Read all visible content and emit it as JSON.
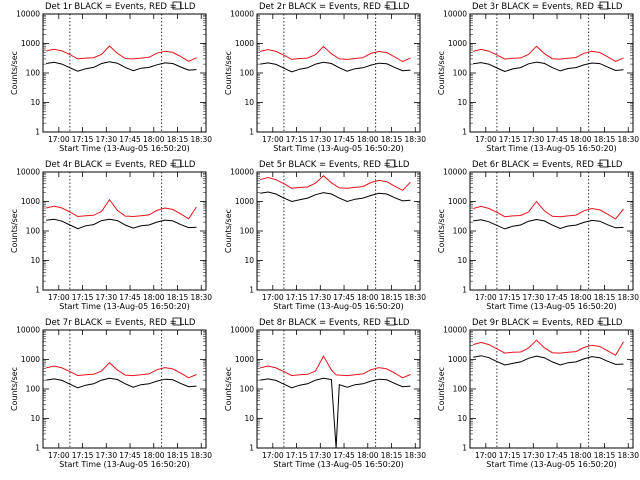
{
  "colors": {
    "events": "#000000",
    "lld": "#e8141c",
    "frame": "#000000",
    "background": "#ffffff"
  },
  "y_tick_labels": [
    "1",
    "10",
    "100",
    "1000",
    "10000"
  ],
  "x_tick_labels": [
    "17:00",
    "17:15",
    "17:30",
    "17:45",
    "18:00",
    "18:15",
    "18:30"
  ],
  "chart_data": [
    {
      "type": "line",
      "title": "Det 1r BLACK = Events, RED = LLD",
      "xlabel": "Start Time (13-Aug-05 16:50:20)",
      "ylabel": "Counts/sec",
      "yscale": "log",
      "ylim": [
        1,
        10000
      ],
      "x": [
        "16:52",
        "16:57",
        "17:02",
        "17:07",
        "17:12",
        "17:17",
        "17:22",
        "17:27",
        "17:32",
        "17:37",
        "17:42",
        "17:47",
        "17:52",
        "17:57",
        "18:02",
        "18:07",
        "18:12",
        "18:17",
        "18:22",
        "18:27"
      ],
      "series": [
        {
          "name": "Events",
          "values": [
            210,
            230,
            200,
            150,
            115,
            140,
            155,
            210,
            240,
            215,
            155,
            120,
            145,
            155,
            190,
            220,
            210,
            160,
            125,
            130
          ]
        },
        {
          "name": "LLD",
          "values": [
            560,
            640,
            560,
            420,
            300,
            320,
            330,
            430,
            820,
            460,
            310,
            300,
            320,
            340,
            470,
            550,
            500,
            360,
            250,
            330
          ]
        }
      ],
      "dashed_x": [
        "17:07",
        "18:05"
      ]
    },
    {
      "type": "line",
      "title": "Det 2r BLACK = Events, RED = LLD",
      "xlabel": "Start Time (13-Aug-05 16:50:20)",
      "ylabel": "Counts/sec",
      "yscale": "log",
      "ylim": [
        1,
        10000
      ],
      "x": [
        "16:52",
        "16:57",
        "17:02",
        "17:07",
        "17:12",
        "17:17",
        "17:22",
        "17:27",
        "17:32",
        "17:37",
        "17:42",
        "17:47",
        "17:52",
        "17:57",
        "18:02",
        "18:07",
        "18:12",
        "18:17",
        "18:22",
        "18:27"
      ],
      "series": [
        {
          "name": "Events",
          "values": [
            200,
            220,
            195,
            145,
            110,
            135,
            150,
            200,
            230,
            210,
            150,
            115,
            140,
            150,
            185,
            215,
            205,
            155,
            120,
            125
          ]
        },
        {
          "name": "LLD",
          "values": [
            540,
            620,
            540,
            400,
            290,
            310,
            320,
            420,
            800,
            450,
            300,
            290,
            310,
            330,
            460,
            540,
            490,
            350,
            245,
            320
          ]
        }
      ],
      "dashed_x": [
        "17:07",
        "18:05"
      ]
    },
    {
      "type": "line",
      "title": "Det 3r BLACK = Events, RED = LLD",
      "xlabel": "Start Time (13-Aug-05 16:50:20)",
      "ylabel": "Counts/sec",
      "yscale": "log",
      "ylim": [
        1,
        10000
      ],
      "x": [
        "16:52",
        "16:57",
        "17:02",
        "17:07",
        "17:12",
        "17:17",
        "17:22",
        "17:27",
        "17:32",
        "17:37",
        "17:42",
        "17:47",
        "17:52",
        "17:57",
        "18:02",
        "18:07",
        "18:12",
        "18:17",
        "18:22",
        "18:27"
      ],
      "series": [
        {
          "name": "Events",
          "values": [
            205,
            225,
            198,
            148,
            112,
            138,
            152,
            205,
            235,
            212,
            152,
            118,
            142,
            152,
            188,
            218,
            208,
            158,
            122,
            128
          ]
        },
        {
          "name": "LLD",
          "values": [
            550,
            630,
            550,
            410,
            295,
            315,
            325,
            425,
            810,
            455,
            305,
            295,
            315,
            335,
            465,
            545,
            495,
            355,
            248,
            325
          ]
        }
      ],
      "dashed_x": [
        "17:07",
        "18:05"
      ]
    },
    {
      "type": "line",
      "title": "Det 4r BLACK = Events, RED = LLD",
      "xlabel": "Start Time (13-Aug-05 16:50:20)",
      "ylabel": "Counts/sec",
      "yscale": "log",
      "ylim": [
        1,
        10000
      ],
      "x": [
        "16:52",
        "16:57",
        "17:02",
        "17:07",
        "17:12",
        "17:17",
        "17:22",
        "17:27",
        "17:32",
        "17:37",
        "17:42",
        "17:47",
        "17:52",
        "17:57",
        "18:02",
        "18:07",
        "18:12",
        "18:17",
        "18:22",
        "18:27"
      ],
      "series": [
        {
          "name": "Events",
          "values": [
            230,
            250,
            215,
            160,
            120,
            150,
            165,
            225,
            250,
            225,
            160,
            125,
            150,
            160,
            200,
            235,
            220,
            165,
            130,
            135
          ]
        },
        {
          "name": "LLD",
          "values": [
            600,
            700,
            600,
            440,
            310,
            330,
            340,
            460,
            1150,
            500,
            320,
            310,
            330,
            350,
            500,
            600,
            540,
            380,
            260,
            650
          ]
        }
      ],
      "dashed_x": [
        "17:07",
        "18:05"
      ]
    },
    {
      "type": "line",
      "title": "Det 5r BLACK = Events, RED = LLD",
      "xlabel": "Start Time (13-Aug-05 16:50:20)",
      "ylabel": "Counts/sec",
      "yscale": "log",
      "ylim": [
        1,
        10000
      ],
      "x": [
        "16:52",
        "16:57",
        "17:02",
        "17:07",
        "17:12",
        "17:17",
        "17:22",
        "17:27",
        "17:32",
        "17:37",
        "17:42",
        "17:47",
        "17:52",
        "17:57",
        "18:02",
        "18:07",
        "18:12",
        "18:17",
        "18:22",
        "18:27"
      ],
      "series": [
        {
          "name": "Events",
          "values": [
            1900,
            2100,
            1800,
            1300,
            1000,
            1150,
            1300,
            1700,
            2000,
            1800,
            1300,
            1000,
            1200,
            1300,
            1600,
            1900,
            1800,
            1350,
            1050,
            1100
          ]
        },
        {
          "name": "LLD",
          "values": [
            5500,
            6500,
            5500,
            4000,
            2800,
            3000,
            3100,
            4200,
            7500,
            4300,
            2900,
            2800,
            3000,
            3200,
            4400,
            5200,
            4700,
            3300,
            2400,
            4500
          ]
        }
      ],
      "dashed_x": [
        "17:07",
        "18:05"
      ]
    },
    {
      "type": "line",
      "title": "Det 6r BLACK = Events, RED = LLD",
      "xlabel": "Start Time (13-Aug-05 16:50:20)",
      "ylabel": "Counts/sec",
      "yscale": "log",
      "ylim": [
        1,
        10000
      ],
      "x": [
        "16:52",
        "16:57",
        "17:02",
        "17:07",
        "17:12",
        "17:17",
        "17:22",
        "17:27",
        "17:32",
        "17:37",
        "17:42",
        "17:47",
        "17:52",
        "17:57",
        "18:02",
        "18:07",
        "18:12",
        "18:17",
        "18:22",
        "18:27"
      ],
      "series": [
        {
          "name": "Events",
          "values": [
            220,
            240,
            205,
            155,
            118,
            145,
            160,
            215,
            245,
            220,
            158,
            122,
            148,
            158,
            195,
            228,
            215,
            162,
            128,
            132
          ]
        },
        {
          "name": "LLD",
          "values": [
            580,
            680,
            580,
            430,
            305,
            325,
            335,
            445,
            1000,
            480,
            315,
            305,
            325,
            345,
            485,
            580,
            520,
            370,
            255,
            560
          ]
        }
      ],
      "dashed_x": [
        "17:07",
        "18:05"
      ]
    },
    {
      "type": "line",
      "title": "Det 7r BLACK = Events, RED = LLD",
      "xlabel": "Start Time (13-Aug-05 16:50:20)",
      "ylabel": "Counts/sec",
      "yscale": "log",
      "ylim": [
        1,
        10000
      ],
      "x": [
        "16:52",
        "16:57",
        "17:02",
        "17:07",
        "17:12",
        "17:17",
        "17:22",
        "17:27",
        "17:32",
        "17:37",
        "17:42",
        "17:47",
        "17:52",
        "17:57",
        "18:02",
        "18:07",
        "18:12",
        "18:17",
        "18:22",
        "18:27"
      ],
      "series": [
        {
          "name": "Events",
          "values": [
            200,
            220,
            195,
            145,
            110,
            135,
            150,
            200,
            230,
            210,
            150,
            115,
            140,
            150,
            185,
            215,
            205,
            155,
            120,
            125
          ]
        },
        {
          "name": "LLD",
          "values": [
            520,
            600,
            520,
            390,
            285,
            305,
            315,
            410,
            780,
            440,
            295,
            285,
            305,
            325,
            450,
            530,
            480,
            345,
            240,
            310
          ]
        }
      ],
      "dashed_x": [
        "17:07",
        "18:05"
      ]
    },
    {
      "type": "line",
      "title": "Det 8r BLACK = Events, RED = LLD",
      "xlabel": "Start Time (13-Aug-05 16:50:20)",
      "ylabel": "Counts/sec",
      "yscale": "log",
      "ylim": [
        1,
        10000
      ],
      "x": [
        "16:52",
        "16:57",
        "17:02",
        "17:07",
        "17:12",
        "17:17",
        "17:22",
        "17:27",
        "17:32",
        "17:37",
        "17:40",
        "17:42",
        "17:47",
        "17:52",
        "17:57",
        "18:02",
        "18:07",
        "18:12",
        "18:17",
        "18:22",
        "18:27"
      ],
      "series": [
        {
          "name": "Events",
          "values": [
            200,
            220,
            195,
            145,
            110,
            135,
            150,
            200,
            230,
            210,
            1,
            140,
            115,
            140,
            150,
            185,
            215,
            205,
            155,
            120,
            125
          ]
        },
        {
          "name": "LLD",
          "values": [
            520,
            600,
            520,
            390,
            285,
            305,
            315,
            410,
            1300,
            440,
            300,
            295,
            285,
            305,
            325,
            450,
            530,
            480,
            345,
            240,
            310
          ]
        }
      ],
      "dashed_x": [
        "17:07",
        "18:05"
      ]
    },
    {
      "type": "line",
      "title": "Det 9r BLACK = Events, RED = LLD",
      "xlabel": "Start Time (13-Aug-05 16:50:20)",
      "ylabel": "Counts/sec",
      "yscale": "log",
      "ylim": [
        1,
        10000
      ],
      "x": [
        "16:52",
        "16:57",
        "17:02",
        "17:07",
        "17:12",
        "17:17",
        "17:22",
        "17:27",
        "17:32",
        "17:37",
        "17:42",
        "17:47",
        "17:52",
        "17:57",
        "18:02",
        "18:07",
        "18:12",
        "18:17",
        "18:22",
        "18:27"
      ],
      "series": [
        {
          "name": "Events",
          "values": [
            1200,
            1350,
            1150,
            850,
            650,
            740,
            830,
            1100,
            1300,
            1150,
            830,
            650,
            780,
            830,
            1050,
            1250,
            1150,
            870,
            680,
            700
          ]
        },
        {
          "name": "LLD",
          "values": [
            3200,
            3800,
            3200,
            2300,
            1650,
            1750,
            1800,
            2450,
            4500,
            2500,
            1700,
            1650,
            1750,
            1850,
            2550,
            3050,
            2750,
            1950,
            1400,
            4000
          ]
        }
      ],
      "dashed_x": [
        "17:07",
        "18:05"
      ]
    }
  ]
}
